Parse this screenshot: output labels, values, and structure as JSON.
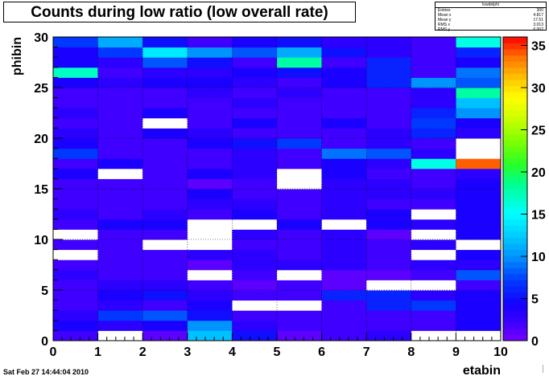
{
  "title": "Counts during low ratio (low overall rate)",
  "stats": {
    "header": "lowdelphi",
    "rows": [
      {
        "label": "Entries",
        "value": "300"
      },
      {
        "label": "Mean x",
        "value": "4.817"
      },
      {
        "label": "Mean y",
        "value": "17.51"
      },
      {
        "label": "RMS x",
        "value": "3.013"
      },
      {
        "label": "RMS y",
        "value": "6.002"
      }
    ]
  },
  "timestamp": "Sat Feb 27 14:44:04 2010",
  "chart_data": {
    "type": "heatmap",
    "xlabel": "etabin",
    "ylabel": "phibin",
    "xlim": [
      0,
      10
    ],
    "ylim": [
      0,
      30
    ],
    "x_ticks": [
      "0",
      "1",
      "2",
      "3",
      "4",
      "5",
      "6",
      "7",
      "8",
      "9",
      "10"
    ],
    "y_ticks": [
      "0",
      "5",
      "10",
      "15",
      "20",
      "25",
      "30"
    ],
    "z_ticks": [
      "0",
      "5",
      "10",
      "15",
      "20",
      "25",
      "30",
      "35"
    ],
    "zlim": [
      0,
      36
    ],
    "grid": true,
    "colorbar": "right",
    "x_bins": 10,
    "y_bins": 30,
    "values": [
      [
        2,
        0,
        1,
        12,
        5,
        1,
        2,
        3,
        0,
        0
      ],
      [
        4,
        3,
        4,
        10,
        3,
        2,
        2,
        2,
        2,
        4
      ],
      [
        3,
        7,
        8,
        5,
        2,
        2,
        2,
        2,
        2,
        4
      ],
      [
        2,
        3,
        2,
        4,
        0,
        0,
        2,
        6,
        7,
        4
      ],
      [
        2,
        4,
        5,
        3,
        2,
        2,
        6,
        6,
        3,
        4
      ],
      [
        2,
        3,
        3,
        2,
        1,
        2,
        1,
        0,
        0,
        2
      ],
      [
        3,
        2,
        2,
        0,
        2,
        0,
        1,
        1,
        2,
        8
      ],
      [
        2,
        2,
        2,
        1,
        3,
        3,
        3,
        2,
        3,
        3
      ],
      [
        0,
        2,
        2,
        3,
        3,
        2,
        3,
        2,
        0,
        4
      ],
      [
        2,
        2,
        0,
        0,
        2,
        2,
        3,
        2,
        3,
        0
      ],
      [
        0,
        2,
        2,
        0,
        3,
        2,
        3,
        1,
        0,
        4
      ],
      [
        2,
        4,
        4,
        0,
        0,
        4,
        0,
        4,
        3,
        4
      ],
      [
        3,
        2,
        3,
        2,
        4,
        2,
        3,
        4,
        0,
        4
      ],
      [
        2,
        2,
        2,
        3,
        3,
        2,
        3,
        2,
        2,
        4
      ],
      [
        2,
        2,
        2,
        4,
        2,
        2,
        3,
        3,
        3,
        4
      ],
      [
        2,
        2,
        2,
        1,
        2,
        0,
        3,
        3,
        2,
        4
      ],
      [
        4,
        0,
        2,
        4,
        3,
        0,
        4,
        2,
        2,
        3
      ],
      [
        2,
        4,
        2,
        2,
        3,
        2,
        4,
        3,
        16,
        34
      ],
      [
        7,
        2,
        2,
        2,
        3,
        2,
        9,
        8,
        3,
        0
      ],
      [
        4,
        2,
        2,
        4,
        5,
        7,
        2,
        3,
        2,
        0
      ],
      [
        3,
        2,
        4,
        3,
        2,
        2,
        2,
        3,
        6,
        3
      ],
      [
        2,
        2,
        0,
        2,
        4,
        2,
        4,
        2,
        7,
        4
      ],
      [
        3,
        2,
        4,
        2,
        2,
        2,
        2,
        2,
        6,
        10
      ],
      [
        2,
        2,
        2,
        2,
        3,
        2,
        2,
        2,
        3,
        12
      ],
      [
        2,
        2,
        2,
        3,
        2,
        3,
        2,
        2,
        3,
        18
      ],
      [
        4,
        3,
        4,
        4,
        3,
        2,
        4,
        6,
        10,
        8
      ],
      [
        17,
        2,
        3,
        3,
        4,
        5,
        4,
        6,
        2,
        9
      ],
      [
        4,
        3,
        8,
        5,
        2,
        18,
        2,
        6,
        2,
        4
      ],
      [
        4,
        7,
        14,
        10,
        8,
        11,
        5,
        3,
        2,
        6
      ],
      [
        7,
        11,
        5,
        2,
        4,
        5,
        3,
        3,
        2,
        16
      ]
    ]
  }
}
